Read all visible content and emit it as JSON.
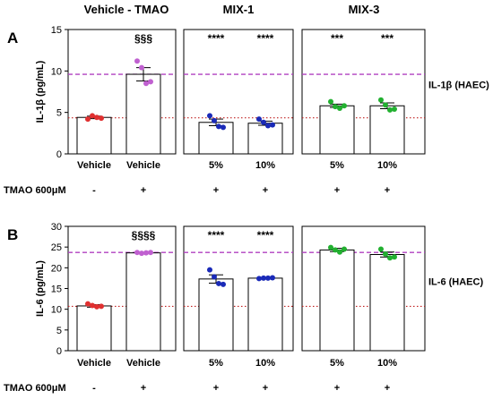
{
  "header": {
    "groups": [
      "Vehicle - TMAO",
      "MIX-1",
      "MIX-3"
    ]
  },
  "colors": {
    "vehicle": "#e03030",
    "tmao": "#c060d0",
    "mix1": "#1a2ab8",
    "mix3": "#22b030",
    "ref_tmao": "#b040c0",
    "ref_vehicle": "#c02020"
  },
  "chart_data": [
    {
      "type": "bar",
      "panel_label": "A",
      "ylabel": "IL-1β (pg/mL)",
      "side_label": "IL-1β (HAEC)",
      "ylim": [
        0,
        15
      ],
      "yticks": [
        0,
        5,
        10,
        15
      ],
      "ref_dashed": 9.6,
      "ref_dotted": 4.35,
      "groups": [
        {
          "name": "Vehicle - TMAO",
          "bars": [
            {
              "label": "Vehicle",
              "tmao": "-",
              "value": 4.4,
              "sem": 0.15,
              "color_key": "vehicle",
              "points": [
                4.2,
                4.6,
                4.4,
                4.3
              ],
              "stars": ""
            },
            {
              "label": "Vehicle",
              "tmao": "+",
              "value": 9.6,
              "sem": 0.8,
              "color_key": "tmao",
              "points": [
                11.2,
                10.4,
                8.5,
                8.7
              ],
              "stars": "§§§"
            }
          ]
        },
        {
          "name": "MIX-1",
          "bars": [
            {
              "label": "5%",
              "tmao": "+",
              "value": 3.8,
              "sem": 0.4,
              "color_key": "mix1",
              "points": [
                4.6,
                4.0,
                3.3,
                3.2
              ],
              "stars": "****"
            },
            {
              "label": "10%",
              "tmao": "+",
              "value": 3.7,
              "sem": 0.25,
              "color_key": "mix1",
              "points": [
                4.2,
                3.8,
                3.4,
                3.5
              ],
              "stars": "****"
            }
          ]
        },
        {
          "name": "MIX-3",
          "bars": [
            {
              "label": "5%",
              "tmao": "+",
              "value": 5.8,
              "sem": 0.2,
              "color_key": "mix3",
              "points": [
                6.3,
                5.7,
                5.5,
                5.8
              ],
              "stars": "***"
            },
            {
              "label": "10%",
              "tmao": "+",
              "value": 5.8,
              "sem": 0.35,
              "color_key": "mix3",
              "points": [
                6.5,
                5.9,
                5.3,
                5.4
              ],
              "stars": "***"
            }
          ]
        }
      ]
    },
    {
      "type": "bar",
      "panel_label": "B",
      "ylabel": "IL-6 (pg/mL)",
      "side_label": "IL-6 (HAEC)",
      "ylim": [
        0,
        30
      ],
      "yticks": [
        0,
        5,
        10,
        15,
        20,
        25,
        30
      ],
      "ref_dashed": 23.7,
      "ref_dotted": 10.7,
      "groups": [
        {
          "name": "Vehicle - TMAO",
          "bars": [
            {
              "label": "Vehicle",
              "tmao": "-",
              "value": 10.8,
              "sem": 0.3,
              "color_key": "vehicle",
              "points": [
                11.3,
                10.9,
                10.6,
                10.7
              ],
              "stars": ""
            },
            {
              "label": "Vehicle",
              "tmao": "+",
              "value": 23.6,
              "sem": 0.15,
              "color_key": "tmao",
              "points": [
                23.7,
                23.5,
                23.6,
                23.7
              ],
              "stars": "§§§§"
            }
          ]
        },
        {
          "name": "MIX-1",
          "bars": [
            {
              "label": "5%",
              "tmao": "+",
              "value": 17.3,
              "sem": 1.0,
              "color_key": "mix1",
              "points": [
                19.5,
                17.8,
                16.2,
                16.0
              ],
              "stars": "****"
            },
            {
              "label": "10%",
              "tmao": "+",
              "value": 17.5,
              "sem": 0.1,
              "color_key": "mix1",
              "points": [
                17.4,
                17.5,
                17.5,
                17.6
              ],
              "stars": "****"
            }
          ]
        },
        {
          "name": "MIX-3",
          "bars": [
            {
              "label": "5%",
              "tmao": "+",
              "value": 24.3,
              "sem": 0.4,
              "color_key": "mix3",
              "points": [
                24.9,
                24.3,
                23.8,
                24.5
              ],
              "stars": ""
            },
            {
              "label": "10%",
              "tmao": "+",
              "value": 23.2,
              "sem": 0.6,
              "color_key": "mix3",
              "points": [
                24.5,
                23.3,
                22.4,
                22.6
              ],
              "stars": ""
            }
          ]
        }
      ]
    }
  ],
  "tmao_row_label": "TMAO 600μM"
}
